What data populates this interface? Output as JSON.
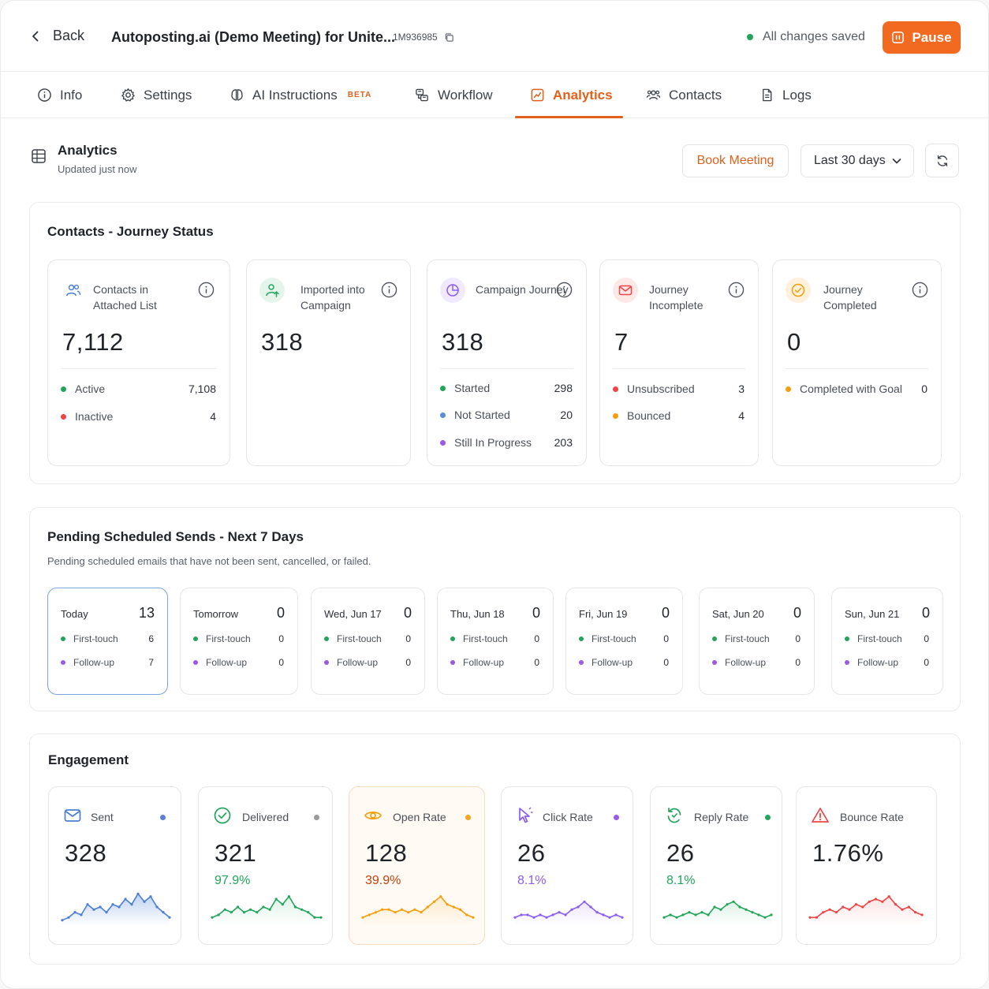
{
  "header": {
    "back_label": "Back",
    "title": "Autoposting.ai (Demo Meeting) for Unite...",
    "campaign_id": "1M936985",
    "save_status": "All changes saved",
    "pause_label": "Pause",
    "colors": {
      "accent": "#f26a1f",
      "saved": "#22a55b"
    }
  },
  "tabs": [
    {
      "label": "Info",
      "icon": "info-icon"
    },
    {
      "label": "Settings",
      "icon": "gear-icon"
    },
    {
      "label": "AI Instructions",
      "icon": "brain-icon",
      "badge": "BETA"
    },
    {
      "label": "Workflow",
      "icon": "workflow-icon"
    },
    {
      "label": "Analytics",
      "icon": "analytics-icon",
      "active": true
    },
    {
      "label": "Contacts",
      "icon": "contacts-icon"
    },
    {
      "label": "Logs",
      "icon": "logs-icon"
    }
  ],
  "analytics": {
    "title": "Analytics",
    "updated": "Updated just now",
    "book_meeting_label": "Book Meeting",
    "range_value": "Last 30 days"
  },
  "journey": {
    "title": "Contacts - Journey Status",
    "cards": [
      {
        "label": "Contacts in Attached List",
        "value": "7,112",
        "icon": "users-icon",
        "rows": [
          {
            "label": "Active",
            "value": "7,108",
            "color": "#22a55b"
          },
          {
            "label": "Inactive",
            "value": "4",
            "color": "#ef4444"
          }
        ]
      },
      {
        "label": "Imported into Campaign",
        "value": "318",
        "icon": "user-import-icon",
        "rows": []
      },
      {
        "label": "Campaign Journey",
        "value": "318",
        "icon": "pie-icon",
        "rows": [
          {
            "label": "Started",
            "value": "298",
            "color": "#22a55b"
          },
          {
            "label": "Not Started",
            "value": "20",
            "color": "#5b8dd6"
          },
          {
            "label": "Still In Progress",
            "value": "203",
            "color": "#9b59e8"
          }
        ]
      },
      {
        "label": "Journey Incomplete",
        "value": "7",
        "icon": "mail-icon",
        "rows": [
          {
            "label": "Unsubscribed",
            "value": "3",
            "color": "#ef4444"
          },
          {
            "label": "Bounced",
            "value": "4",
            "color": "#f59e0b"
          }
        ]
      },
      {
        "label": "Journey Completed",
        "value": "0",
        "icon": "check-circle-icon",
        "rows": [
          {
            "label": "Completed with Goal",
            "value": "0",
            "color": "#f59e0b"
          }
        ]
      }
    ]
  },
  "pending": {
    "title": "Pending Scheduled Sends - Next 7 Days",
    "subtitle": "Pending scheduled emails that have not been sent, cancelled, or failed.",
    "first_touch_label": "First-touch",
    "follow_up_label": "Follow-up",
    "days": [
      {
        "label": "Today",
        "total": "13",
        "first": "6",
        "follow": "7"
      },
      {
        "label": "Tomorrow",
        "total": "0",
        "first": "0",
        "follow": "0"
      },
      {
        "label": "Wed, Jun 17",
        "total": "0",
        "first": "0",
        "follow": "0"
      },
      {
        "label": "Thu, Jun 18",
        "total": "0",
        "first": "0",
        "follow": "0"
      },
      {
        "label": "Fri, Jun 19",
        "total": "0",
        "first": "0",
        "follow": "0"
      },
      {
        "label": "Sat, Jun 20",
        "total": "0",
        "first": "0",
        "follow": "0"
      },
      {
        "label": "Sun, Jun 21",
        "total": "0",
        "first": "0",
        "follow": "0"
      }
    ]
  },
  "engagement": {
    "title": "Engagement",
    "cards": [
      {
        "label": "Sent",
        "value": "328",
        "pct": "",
        "color": "#4a7fd4",
        "icon": "mail-icon",
        "trend": [
          1,
          2,
          4,
          3,
          7,
          5,
          6,
          4,
          7,
          6,
          9,
          7,
          11,
          8,
          10,
          6,
          4,
          2
        ]
      },
      {
        "label": "Delivered",
        "value": "321",
        "pct": "97.9%",
        "color": "#22a55b",
        "icon": "check-circle-icon",
        "trend": [
          2,
          3,
          5,
          4,
          6,
          4,
          5,
          4,
          6,
          5,
          9,
          7,
          10,
          6,
          5,
          4,
          2,
          2
        ]
      },
      {
        "label": "Open Rate",
        "value": "128",
        "pct": "39.9%",
        "color": "#f59e0b",
        "icon": "eye-icon",
        "trend": [
          2,
          3,
          4,
          5,
          5,
          4,
          5,
          4,
          5,
          4,
          6,
          8,
          10,
          7,
          6,
          5,
          3,
          2
        ]
      },
      {
        "label": "Click Rate",
        "value": "26",
        "pct": "8.1%",
        "color": "#8b5cf6",
        "icon": "cursor-icon",
        "trend": [
          2,
          3,
          3,
          2,
          3,
          2,
          3,
          4,
          3,
          5,
          6,
          8,
          6,
          4,
          3,
          2,
          3,
          2
        ]
      },
      {
        "label": "Reply Rate",
        "value": "26",
        "pct": "8.1%",
        "color": "#22a55b",
        "icon": "reply-icon",
        "trend": [
          2,
          3,
          2,
          3,
          4,
          3,
          4,
          3,
          6,
          5,
          7,
          8,
          6,
          5,
          4,
          3,
          2,
          3
        ]
      },
      {
        "label": "Bounce Rate",
        "value": "1.76%",
        "pct": "",
        "color": "#ef4444",
        "icon": "alert-icon",
        "trend": [
          2,
          2,
          4,
          5,
          4,
          6,
          5,
          7,
          6,
          8,
          9,
          8,
          10,
          7,
          5,
          6,
          4,
          3
        ]
      }
    ]
  }
}
